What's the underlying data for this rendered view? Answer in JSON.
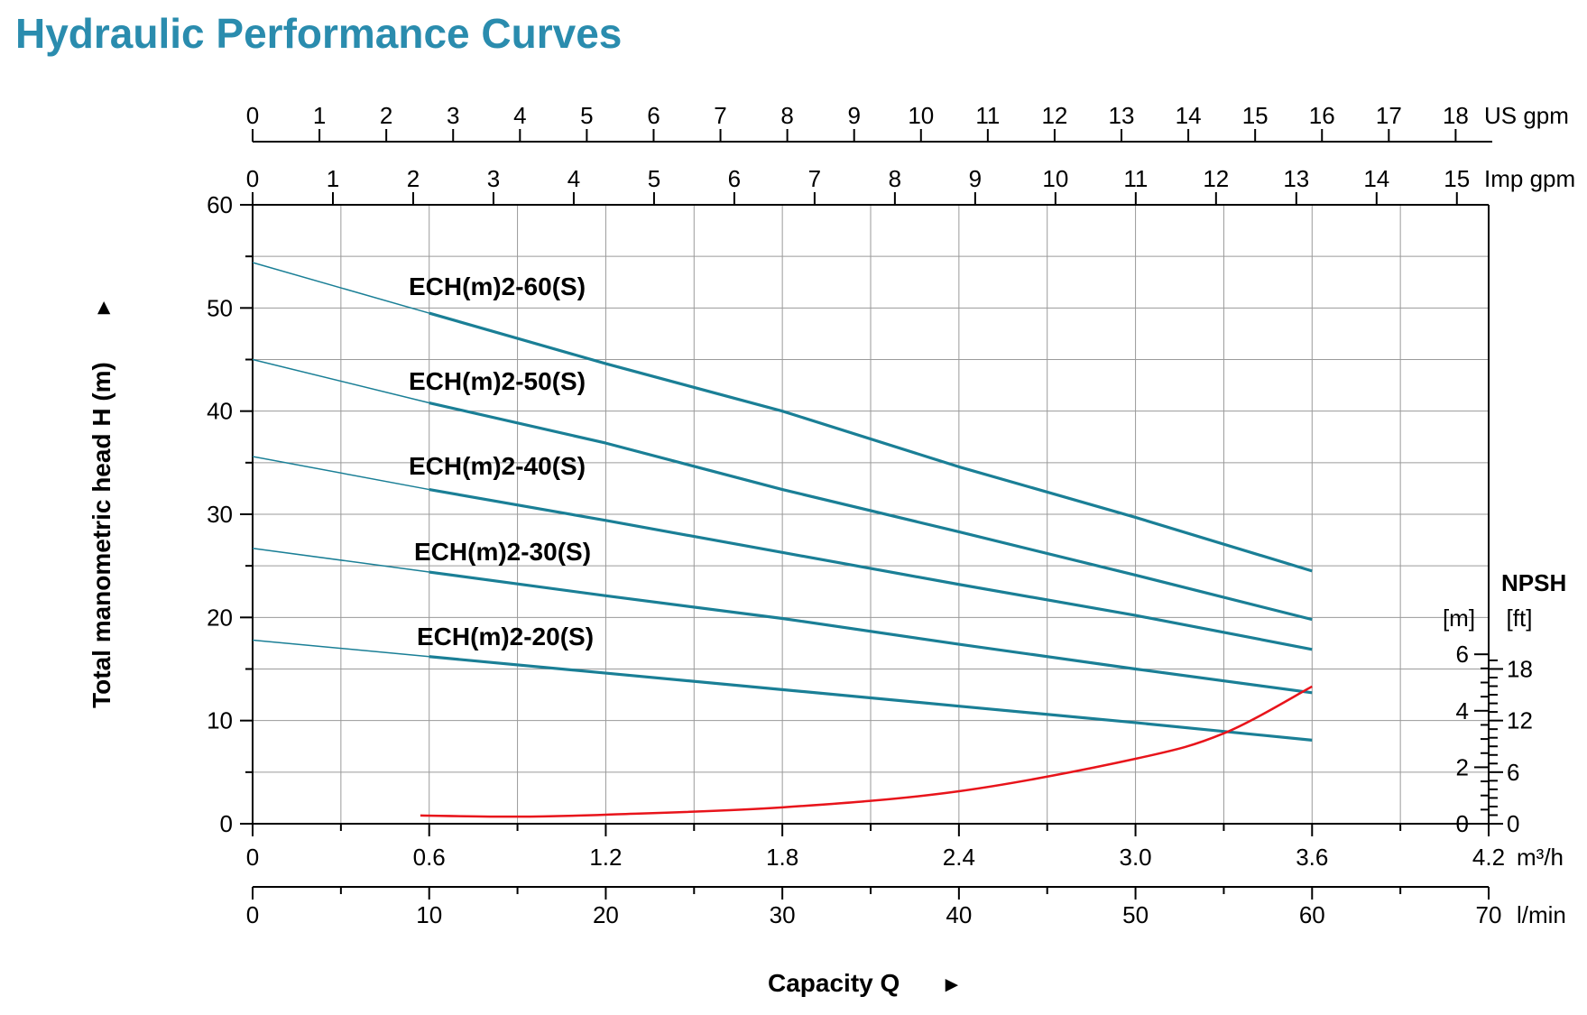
{
  "title": "Hydraulic Performance Curves",
  "chart_data": {
    "type": "line",
    "title": "Hydraulic Performance Curves",
    "xlabel": "Capacity Q",
    "xlabel_arrow": "►",
    "ylabel": "Total manometric head H (m)",
    "ylabel_arrow": "►",
    "x_unit": "m³/h",
    "xlim": [
      0,
      4.2
    ],
    "ylim": [
      0,
      60
    ],
    "grid": true,
    "x_ticks": [
      "0",
      "0.6",
      "1.2",
      "1.8",
      "2.4",
      "3.0",
      "3.6",
      "4.2"
    ],
    "y_ticks": [
      "0",
      "10",
      "20",
      "30",
      "40",
      "50",
      "60"
    ],
    "secondary_axes": {
      "us_gpm": {
        "unit": "US gpm",
        "ticks": [
          "0",
          "1",
          "2",
          "3",
          "4",
          "5",
          "6",
          "7",
          "8",
          "9",
          "10",
          "11",
          "12",
          "13",
          "14",
          "15",
          "16",
          "17",
          "18"
        ]
      },
      "imp_gpm": {
        "unit": "Imp gpm",
        "ticks": [
          "0",
          "1",
          "2",
          "3",
          "4",
          "5",
          "6",
          "7",
          "8",
          "9",
          "10",
          "11",
          "12",
          "13",
          "14",
          "15"
        ]
      },
      "l_min": {
        "unit": "l/min",
        "ticks": [
          "0",
          "10",
          "20",
          "30",
          "40",
          "50",
          "60",
          "70"
        ]
      }
    },
    "npsh_axis": {
      "label": "NPSH",
      "m_unit": "[m]",
      "ft_unit": "[ft]",
      "m_ticks": [
        "0",
        "2",
        "4",
        "6"
      ],
      "ft_ticks": [
        "0",
        "6",
        "12",
        "18"
      ]
    },
    "x": [
      0,
      0.6,
      1.2,
      1.8,
      2.4,
      3.0,
      3.6
    ],
    "series": [
      {
        "name": "ECH(m)2-60(S)",
        "color": "#1a7f96",
        "values": [
          54.4,
          49.5,
          44.6,
          40.0,
          34.6,
          29.7,
          24.5
        ]
      },
      {
        "name": "ECH(m)2-50(S)",
        "color": "#1a7f96",
        "values": [
          45.0,
          40.8,
          36.9,
          32.4,
          28.3,
          24.1,
          19.8
        ]
      },
      {
        "name": "ECH(m)2-40(S)",
        "color": "#1a7f96",
        "values": [
          35.6,
          32.4,
          29.4,
          26.3,
          23.2,
          20.2,
          16.9
        ]
      },
      {
        "name": "ECH(m)2-30(S)",
        "color": "#1a7f96",
        "values": [
          26.7,
          24.4,
          22.1,
          19.9,
          17.4,
          15.0,
          12.7
        ]
      },
      {
        "name": "ECH(m)2-20(S)",
        "color": "#1a7f96",
        "values": [
          17.8,
          16.2,
          14.6,
          13.0,
          11.4,
          9.8,
          8.1
        ]
      }
    ],
    "npsh": {
      "color": "#e8141b",
      "unit": "m",
      "x": [
        0.57,
        0.9,
        1.2,
        1.8,
        2.4,
        3.0,
        3.3,
        3.6
      ],
      "values": [
        0.29,
        0.25,
        0.32,
        0.58,
        1.15,
        2.3,
        3.2,
        4.86
      ]
    }
  }
}
